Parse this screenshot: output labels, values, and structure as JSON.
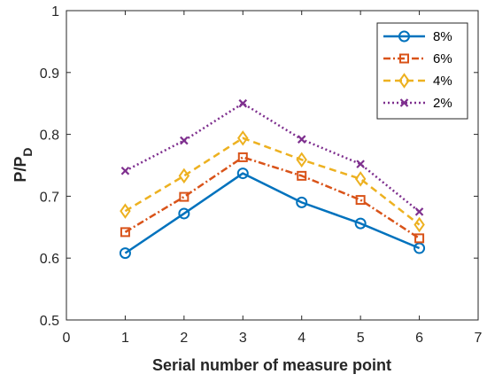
{
  "chart_data": {
    "type": "line",
    "xlabel": "Serial number of measure point",
    "ylabel_main": "P/P",
    "ylabel_sub": "D",
    "xlim": [
      0,
      7
    ],
    "ylim": [
      0.5,
      1
    ],
    "xticks": [
      "0",
      "1",
      "2",
      "3",
      "4",
      "5",
      "6",
      "7"
    ],
    "yticks": [
      "0.5",
      "0.6",
      "0.7",
      "0.8",
      "0.9",
      "1"
    ],
    "grid": false,
    "legend_position": "top-right",
    "x": [
      1,
      2,
      3,
      4,
      5,
      6
    ],
    "series": [
      {
        "name": "8%",
        "values": [
          0.608,
          0.672,
          0.737,
          0.69,
          0.656,
          0.616
        ],
        "color": "#0072BD",
        "marker": "circle",
        "line_style": "solid"
      },
      {
        "name": "6%",
        "values": [
          0.642,
          0.699,
          0.763,
          0.733,
          0.694,
          0.632
        ],
        "color": "#D95319",
        "marker": "square",
        "line_style": "dash-dot"
      },
      {
        "name": "4%",
        "values": [
          0.676,
          0.733,
          0.794,
          0.759,
          0.728,
          0.654
        ],
        "color": "#EDB120",
        "marker": "diamond",
        "line_style": "dashed"
      },
      {
        "name": "2%",
        "values": [
          0.741,
          0.79,
          0.85,
          0.792,
          0.752,
          0.675
        ],
        "color": "#7E2F8E",
        "marker": "x",
        "line_style": "dotted"
      }
    ]
  }
}
